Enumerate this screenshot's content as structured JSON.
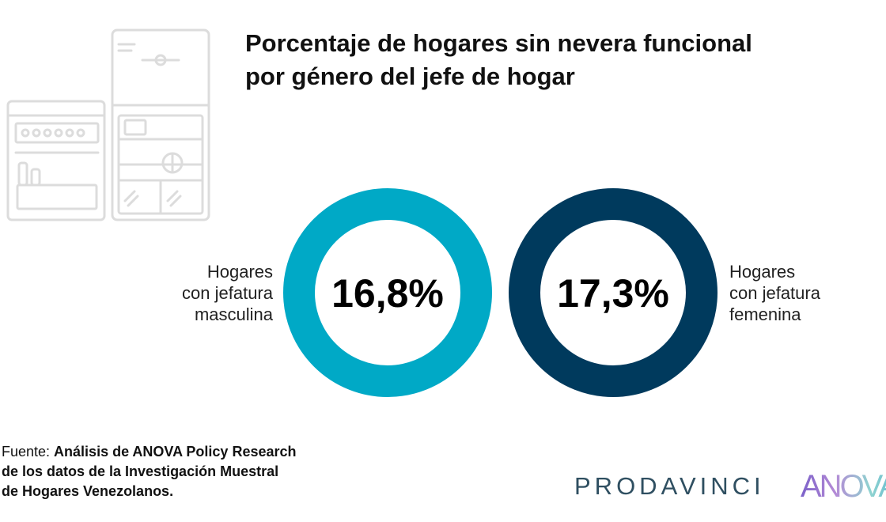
{
  "title": {
    "line1": "Porcentaje de hogares sin nevera funcional",
    "line2": "por género del jefe de hogar"
  },
  "chart_data": {
    "type": "pie",
    "title": "Porcentaje de hogares sin nevera funcional por género del jefe de hogar",
    "series": [
      {
        "name": "Hogares con jefatura masculina",
        "value": 16.8,
        "value_label": "16,8%",
        "label_lines": [
          "Hogares",
          "con jefatura",
          "masculina"
        ],
        "color": "#00a9c6"
      },
      {
        "name": "Hogares con jefatura femenina",
        "value": 17.3,
        "value_label": "17,3%",
        "label_lines": [
          "Hogares",
          "con jefatura",
          "femenina"
        ],
        "color": "#003a5d"
      }
    ]
  },
  "source": {
    "prefix": "Fuente: ",
    "line1": "Análisis de ANOVA Policy Research",
    "line2": "de los datos de la Investigación Muestral",
    "line3": "de Hogares Venezolanos."
  },
  "logos": {
    "prodavinci": "PRODAVINCI",
    "anova": "ANOVA"
  },
  "icons": {
    "illustration": "refrigerator-icon"
  },
  "colors": {
    "illustration_stroke": "#dcdcdc",
    "prodavinci": "#2f4f61",
    "anova_gradient": [
      "#7b61c9",
      "#b48ad6",
      "#8fd3d0",
      "#5fb7cf"
    ]
  }
}
